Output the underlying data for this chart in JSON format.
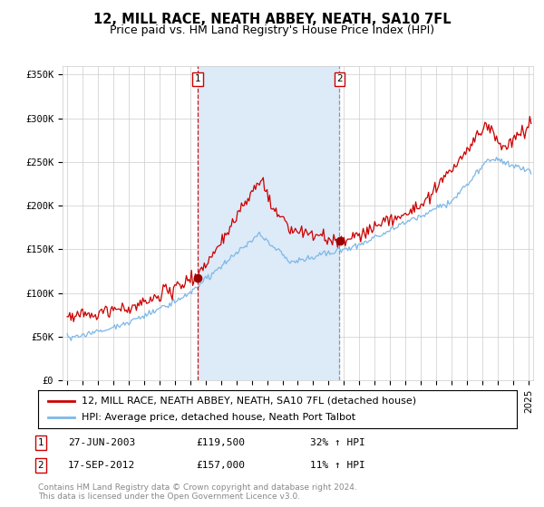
{
  "title": "12, MILL RACE, NEATH ABBEY, NEATH, SA10 7FL",
  "subtitle": "Price paid vs. HM Land Registry's House Price Index (HPI)",
  "ylim": [
    0,
    360000
  ],
  "yticks": [
    0,
    50000,
    100000,
    150000,
    200000,
    250000,
    300000,
    350000
  ],
  "ytick_labels": [
    "£0",
    "£50K",
    "£100K",
    "£150K",
    "£200K",
    "£250K",
    "£300K",
    "£350K"
  ],
  "xlim_start": 1994.7,
  "xlim_end": 2025.3,
  "transaction1": {
    "year": 2003.48,
    "price": 119500,
    "label": "1",
    "date": "27-JUN-2003",
    "pct": "32%",
    "dir": "↑"
  },
  "transaction2": {
    "year": 2012.71,
    "price": 157000,
    "label": "2",
    "date": "17-SEP-2012",
    "pct": "11%",
    "dir": "↑"
  },
  "line_color_red": "#cc0000",
  "line_color_blue": "#7db8e8",
  "fill_color_blue": "#ddeaf7",
  "vline1_color": "#cc0000",
  "vline2_color": "#8888aa",
  "marker_color": "#990000",
  "legend_line1": "12, MILL RACE, NEATH ABBEY, NEATH, SA10 7FL (detached house)",
  "legend_line2": "HPI: Average price, detached house, Neath Port Talbot",
  "footer": "Contains HM Land Registry data © Crown copyright and database right 2024.\nThis data is licensed under the Open Government Licence v3.0.",
  "background_color": "#ffffff",
  "grid_color": "#cccccc",
  "title_fontsize": 10.5,
  "subtitle_fontsize": 9,
  "tick_fontsize": 7.5,
  "legend_fontsize": 8,
  "footer_fontsize": 6.5
}
